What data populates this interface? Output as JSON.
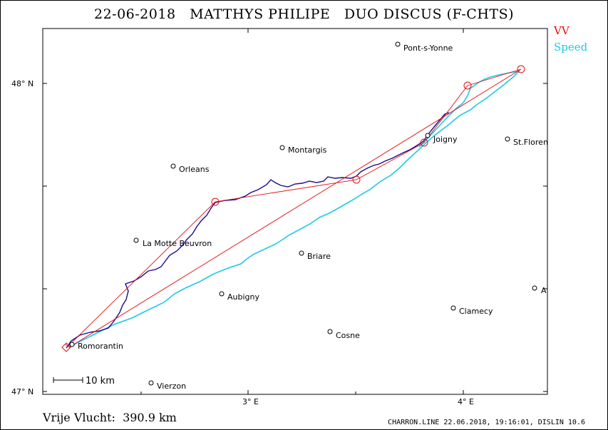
{
  "header": {
    "title": "22-06-2018   MATTHYS PHILIPE   DUO DISCUS (F-CHTS)"
  },
  "legend": {
    "vv": "VV",
    "speed": "Speed"
  },
  "colors": {
    "task": "#e01010",
    "track": "#1a0a8a",
    "speed": "#1fc8e8",
    "frame": "#000000"
  },
  "axes": {
    "lat_labels": [
      {
        "text": "48° N"
      },
      {
        "text": "47° N"
      }
    ],
    "lon_labels": [
      {
        "text": "3° E"
      },
      {
        "text": "4° E"
      }
    ]
  },
  "scale_bar": {
    "label": "10 km"
  },
  "towns": [
    {
      "name": "Pont-s-Yonne"
    },
    {
      "name": "St.Floren"
    },
    {
      "name": "Joigny"
    },
    {
      "name": "Montargis"
    },
    {
      "name": "Orleans"
    },
    {
      "name": "La Motte Beuvron"
    },
    {
      "name": "Briare"
    },
    {
      "name": "Aubigny"
    },
    {
      "name": "A"
    },
    {
      "name": "Clamecy"
    },
    {
      "name": "Cosne"
    },
    {
      "name": "Romorantin"
    },
    {
      "name": "Vierzon"
    }
  ],
  "footer": {
    "distance": "Vrije Vlucht:  390.9 km",
    "credit": "CHARRON.LINE 22.06.2018, 19:16:01, DISLIN 10.6"
  }
}
